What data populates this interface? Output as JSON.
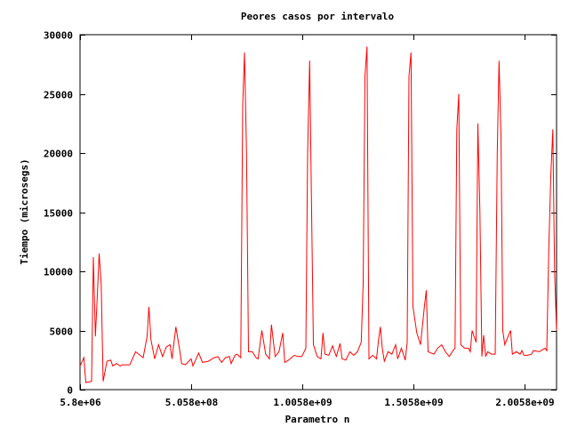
{
  "chart_data": {
    "type": "line",
    "title": "Peores casos por intervalo",
    "xlabel": "Parametro n",
    "ylabel": "Tiempo (microsegs)",
    "xlim": [
      5800000,
      2150000000
    ],
    "ylim": [
      0,
      30000
    ],
    "x_ticks": [
      {
        "value": 5800000,
        "label": "5.8e+06"
      },
      {
        "value": 505800000,
        "label": "5.058e+08"
      },
      {
        "value": 1005800000,
        "label": "1.0058e+09"
      },
      {
        "value": 1505800000,
        "label": "1.5058e+09"
      },
      {
        "value": 2005800000,
        "label": "2.0058e+09"
      }
    ],
    "y_ticks": [
      {
        "value": 0,
        "label": "0"
      },
      {
        "value": 5000,
        "label": "5000"
      },
      {
        "value": 10000,
        "label": "10000"
      },
      {
        "value": 15000,
        "label": "15000"
      },
      {
        "value": 20000,
        "label": "20000"
      },
      {
        "value": 25000,
        "label": "25000"
      },
      {
        "value": 30000,
        "label": "30000"
      }
    ],
    "grid": false,
    "legend": "none",
    "series": [
      {
        "color": "#ff0000",
        "points": [
          [
            5800000,
            2000
          ],
          [
            23000000,
            2700
          ],
          [
            32000000,
            600
          ],
          [
            58000000,
            700
          ],
          [
            66000000,
            11200
          ],
          [
            75000000,
            4500
          ],
          [
            84000000,
            8000
          ],
          [
            92000000,
            11500
          ],
          [
            101000000,
            9000
          ],
          [
            110000000,
            700
          ],
          [
            127000000,
            2400
          ],
          [
            144000000,
            2500
          ],
          [
            153000000,
            2000
          ],
          [
            170000000,
            2200
          ],
          [
            187000000,
            2000
          ],
          [
            196000000,
            2100
          ],
          [
            230000000,
            2100
          ],
          [
            256000000,
            3200
          ],
          [
            290000000,
            2700
          ],
          [
            308000000,
            4500
          ],
          [
            316000000,
            7000
          ],
          [
            325000000,
            4200
          ],
          [
            342000000,
            2600
          ],
          [
            359000000,
            3800
          ],
          [
            377000000,
            2800
          ],
          [
            394000000,
            3600
          ],
          [
            411000000,
            3800
          ],
          [
            420000000,
            2600
          ],
          [
            437000000,
            5300
          ],
          [
            454000000,
            3400
          ],
          [
            463000000,
            2200
          ],
          [
            480000000,
            2100
          ],
          [
            506000000,
            2600
          ],
          [
            514000000,
            2000
          ],
          [
            540000000,
            3100
          ],
          [
            557000000,
            2300
          ],
          [
            583000000,
            2400
          ],
          [
            609000000,
            2700
          ],
          [
            626000000,
            2800
          ],
          [
            643000000,
            2300
          ],
          [
            660000000,
            2700
          ],
          [
            678000000,
            2800
          ],
          [
            686000000,
            2200
          ],
          [
            703000000,
            2900
          ],
          [
            712000000,
            3000
          ],
          [
            729000000,
            2700
          ],
          [
            738000000,
            24000
          ],
          [
            746000000,
            28500
          ],
          [
            755000000,
            20000
          ],
          [
            764000000,
            3200
          ],
          [
            781000000,
            3200
          ],
          [
            798000000,
            2700
          ],
          [
            807000000,
            2600
          ],
          [
            824000000,
            5000
          ],
          [
            841000000,
            3000
          ],
          [
            858000000,
            2600
          ],
          [
            867000000,
            5500
          ],
          [
            884000000,
            2800
          ],
          [
            901000000,
            3200
          ],
          [
            918000000,
            4800
          ],
          [
            927000000,
            2300
          ],
          [
            944000000,
            2500
          ],
          [
            970000000,
            2900
          ],
          [
            987000000,
            2800
          ],
          [
            1004000000,
            2800
          ],
          [
            1022000000,
            3500
          ],
          [
            1030000000,
            20000
          ],
          [
            1039000000,
            27800
          ],
          [
            1048000000,
            15000
          ],
          [
            1056000000,
            3800
          ],
          [
            1073000000,
            2800
          ],
          [
            1090000000,
            2600
          ],
          [
            1099000000,
            4800
          ],
          [
            1108000000,
            3000
          ],
          [
            1125000000,
            2900
          ],
          [
            1142000000,
            3700
          ],
          [
            1159000000,
            2800
          ],
          [
            1176000000,
            3900
          ],
          [
            1185000000,
            2600
          ],
          [
            1202000000,
            2500
          ],
          [
            1220000000,
            3200
          ],
          [
            1237000000,
            2900
          ],
          [
            1254000000,
            3200
          ],
          [
            1271000000,
            4000
          ],
          [
            1280000000,
            9000
          ],
          [
            1288000000,
            26500
          ],
          [
            1297000000,
            29000
          ],
          [
            1306000000,
            2600
          ],
          [
            1323000000,
            2900
          ],
          [
            1340000000,
            2600
          ],
          [
            1349000000,
            4200
          ],
          [
            1357000000,
            5300
          ],
          [
            1366000000,
            3500
          ],
          [
            1375000000,
            2400
          ],
          [
            1392000000,
            3200
          ],
          [
            1409000000,
            3000
          ],
          [
            1426000000,
            3800
          ],
          [
            1435000000,
            2600
          ],
          [
            1452000000,
            3500
          ],
          [
            1469000000,
            2500
          ],
          [
            1478000000,
            4000
          ],
          [
            1486000000,
            26500
          ],
          [
            1495000000,
            28500
          ],
          [
            1504000000,
            7000
          ],
          [
            1521000000,
            4800
          ],
          [
            1538000000,
            3800
          ],
          [
            1555000000,
            7000
          ],
          [
            1564000000,
            8400
          ],
          [
            1572000000,
            3200
          ],
          [
            1598000000,
            3000
          ],
          [
            1615000000,
            3500
          ],
          [
            1633000000,
            3800
          ],
          [
            1650000000,
            3200
          ],
          [
            1667000000,
            2800
          ],
          [
            1684000000,
            3300
          ],
          [
            1693000000,
            3500
          ],
          [
            1701000000,
            22000
          ],
          [
            1710000000,
            25000
          ],
          [
            1719000000,
            3800
          ],
          [
            1736000000,
            3500
          ],
          [
            1753000000,
            3500
          ],
          [
            1762000000,
            3200
          ],
          [
            1770000000,
            5000
          ],
          [
            1788000000,
            4000
          ],
          [
            1796000000,
            22500
          ],
          [
            1805000000,
            15000
          ],
          [
            1814000000,
            2800
          ],
          [
            1822000000,
            4600
          ],
          [
            1831000000,
            2800
          ],
          [
            1840000000,
            3200
          ],
          [
            1857000000,
            3000
          ],
          [
            1874000000,
            3000
          ],
          [
            1883000000,
            20000
          ],
          [
            1891000000,
            27800
          ],
          [
            1900000000,
            21500
          ],
          [
            1908000000,
            5000
          ],
          [
            1917000000,
            3800
          ],
          [
            1934000000,
            4600
          ],
          [
            1943000000,
            5000
          ],
          [
            1951000000,
            3000
          ],
          [
            1969000000,
            3200
          ],
          [
            1986000000,
            3000
          ],
          [
            1994000000,
            3300
          ],
          [
            2003000000,
            2900
          ],
          [
            2020000000,
            2900
          ],
          [
            2037000000,
            3000
          ],
          [
            2046000000,
            3300
          ],
          [
            2072000000,
            3200
          ],
          [
            2089000000,
            3400
          ],
          [
            2098000000,
            3500
          ],
          [
            2106000000,
            3300
          ],
          [
            2115000000,
            12000
          ],
          [
            2124000000,
            18000
          ],
          [
            2133000000,
            22000
          ],
          [
            2141000000,
            10000
          ],
          [
            2150000000,
            5000
          ]
        ]
      }
    ]
  }
}
